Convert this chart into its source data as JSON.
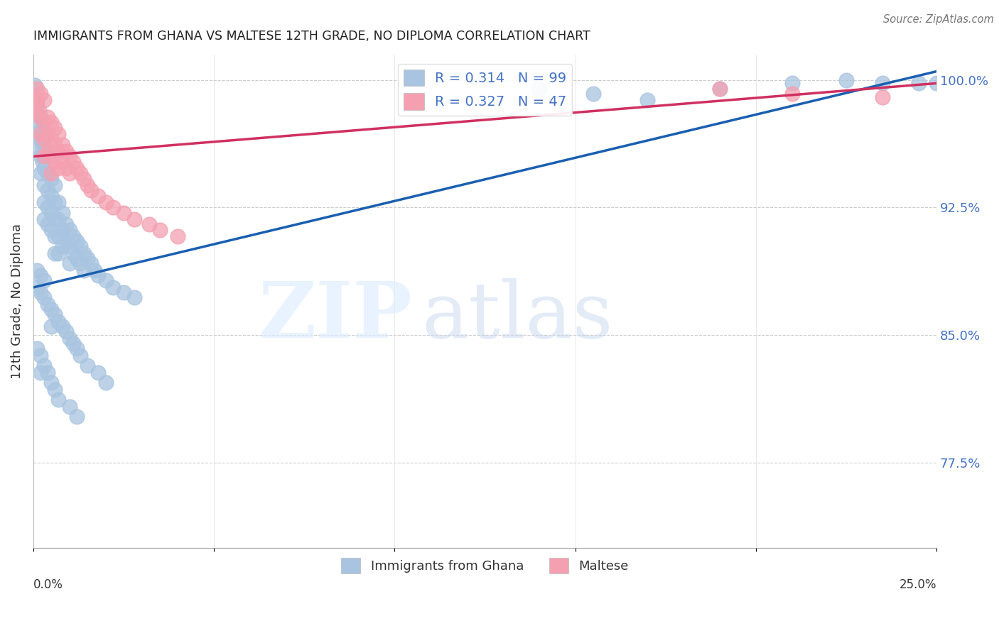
{
  "title": "IMMIGRANTS FROM GHANA VS MALTESE 12TH GRADE, NO DIPLOMA CORRELATION CHART",
  "source": "Source: ZipAtlas.com",
  "ylabel": "12th Grade, No Diploma",
  "legend_label_ghana": "Immigrants from Ghana",
  "legend_label_maltese": "Maltese",
  "watermark_zip": "ZIP",
  "watermark_atlas": "atlas",
  "R_ghana": 0.314,
  "N_ghana": 99,
  "R_maltese": 0.327,
  "N_maltese": 47,
  "ghana_color": "#a8c4e0",
  "ghana_edge_color": "#7aaad0",
  "maltese_color": "#f4a0b0",
  "maltese_edge_color": "#e07090",
  "ghana_line_color": "#1a5fb0",
  "maltese_line_color": "#d03060",
  "ghana_line_x0": 0.0,
  "ghana_line_y0": 0.878,
  "ghana_line_x1": 0.25,
  "ghana_line_y1": 1.005,
  "maltese_line_x0": 0.0,
  "maltese_line_y0": 0.955,
  "maltese_line_x1": 0.25,
  "maltese_line_y1": 0.998,
  "xlim": [
    0.0,
    0.25
  ],
  "ylim": [
    0.725,
    1.015
  ],
  "yticks": [
    0.775,
    0.85,
    0.925,
    1.0
  ],
  "ytick_labels": [
    "77.5%",
    "85.0%",
    "92.5%",
    "100.0%"
  ],
  "ghana_scatter_x": [
    0.0005,
    0.001,
    0.001,
    0.001,
    0.0015,
    0.0015,
    0.002,
    0.002,
    0.002,
    0.002,
    0.0025,
    0.0025,
    0.003,
    0.003,
    0.003,
    0.003,
    0.003,
    0.003,
    0.004,
    0.004,
    0.004,
    0.004,
    0.004,
    0.005,
    0.005,
    0.005,
    0.005,
    0.006,
    0.006,
    0.006,
    0.006,
    0.006,
    0.007,
    0.007,
    0.007,
    0.007,
    0.008,
    0.008,
    0.008,
    0.009,
    0.009,
    0.01,
    0.01,
    0.01,
    0.011,
    0.011,
    0.012,
    0.012,
    0.013,
    0.013,
    0.014,
    0.014,
    0.015,
    0.016,
    0.017,
    0.018,
    0.02,
    0.022,
    0.025,
    0.028,
    0.001,
    0.001,
    0.002,
    0.002,
    0.003,
    0.003,
    0.004,
    0.005,
    0.005,
    0.006,
    0.007,
    0.008,
    0.009,
    0.01,
    0.011,
    0.012,
    0.013,
    0.015,
    0.018,
    0.02,
    0.001,
    0.002,
    0.002,
    0.003,
    0.004,
    0.005,
    0.006,
    0.007,
    0.01,
    0.012,
    0.14,
    0.155,
    0.17,
    0.19,
    0.21,
    0.225,
    0.235,
    0.245,
    0.25
  ],
  "ghana_scatter_y": [
    0.997,
    0.975,
    0.985,
    0.968,
    0.97,
    0.96,
    0.978,
    0.965,
    0.955,
    0.945,
    0.962,
    0.952,
    0.968,
    0.958,
    0.948,
    0.938,
    0.928,
    0.918,
    0.955,
    0.945,
    0.935,
    0.925,
    0.915,
    0.942,
    0.932,
    0.922,
    0.912,
    0.938,
    0.928,
    0.918,
    0.908,
    0.898,
    0.928,
    0.918,
    0.908,
    0.898,
    0.922,
    0.912,
    0.902,
    0.915,
    0.905,
    0.912,
    0.902,
    0.892,
    0.908,
    0.898,
    0.905,
    0.895,
    0.902,
    0.892,
    0.898,
    0.888,
    0.895,
    0.892,
    0.888,
    0.885,
    0.882,
    0.878,
    0.875,
    0.872,
    0.888,
    0.878,
    0.885,
    0.875,
    0.882,
    0.872,
    0.868,
    0.865,
    0.855,
    0.862,
    0.858,
    0.855,
    0.852,
    0.848,
    0.845,
    0.842,
    0.838,
    0.832,
    0.828,
    0.822,
    0.842,
    0.838,
    0.828,
    0.832,
    0.828,
    0.822,
    0.818,
    0.812,
    0.808,
    0.802,
    0.995,
    0.992,
    0.988,
    0.995,
    0.998,
    1.0,
    0.998,
    0.998,
    0.998
  ],
  "malta_scatter_x": [
    0.0005,
    0.001,
    0.001,
    0.0015,
    0.002,
    0.002,
    0.002,
    0.003,
    0.003,
    0.003,
    0.003,
    0.004,
    0.004,
    0.004,
    0.005,
    0.005,
    0.005,
    0.005,
    0.006,
    0.006,
    0.006,
    0.007,
    0.007,
    0.007,
    0.008,
    0.008,
    0.009,
    0.009,
    0.01,
    0.01,
    0.011,
    0.012,
    0.013,
    0.014,
    0.015,
    0.016,
    0.018,
    0.02,
    0.022,
    0.025,
    0.028,
    0.032,
    0.035,
    0.04,
    0.19,
    0.21,
    0.235
  ],
  "malta_scatter_y": [
    0.985,
    0.995,
    0.988,
    0.982,
    0.992,
    0.978,
    0.968,
    0.988,
    0.975,
    0.965,
    0.955,
    0.978,
    0.968,
    0.958,
    0.975,
    0.965,
    0.955,
    0.945,
    0.972,
    0.962,
    0.952,
    0.968,
    0.958,
    0.948,
    0.962,
    0.952,
    0.958,
    0.948,
    0.955,
    0.945,
    0.952,
    0.948,
    0.945,
    0.942,
    0.938,
    0.935,
    0.932,
    0.928,
    0.925,
    0.922,
    0.918,
    0.915,
    0.912,
    0.908,
    0.995,
    0.992,
    0.99
  ]
}
